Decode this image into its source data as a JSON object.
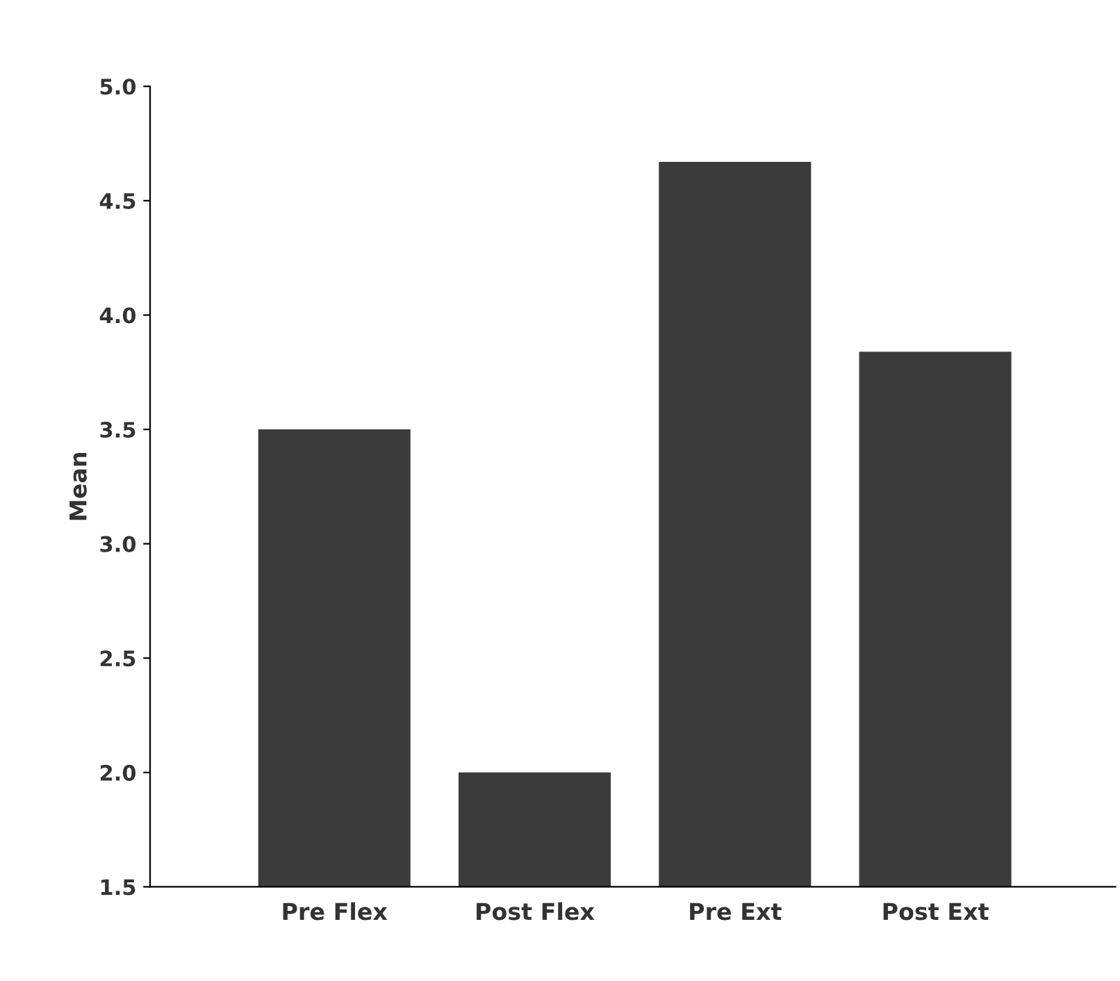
{
  "chart_data": {
    "type": "bar",
    "ylabel": "Mean",
    "categories": [
      "Pre Flex",
      "Post Flex",
      "Pre Ext",
      "Post Ext"
    ],
    "values": [
      3.5,
      2.0,
      4.67,
      3.84
    ],
    "color": "#3b3b3b",
    "ylim": [
      1.5,
      5.0
    ],
    "yticks": [
      {
        "value": 1.5,
        "label": "1.5"
      },
      {
        "value": 2.0,
        "label": "2.0"
      },
      {
        "value": 2.5,
        "label": "2.5"
      },
      {
        "value": 3.0,
        "label": "3.0"
      },
      {
        "value": 3.5,
        "label": "3.5"
      },
      {
        "value": 4.0,
        "label": "4.0"
      },
      {
        "value": 4.5,
        "label": "4.5"
      },
      {
        "value": 5.0,
        "label": "5.0"
      }
    ],
    "grid": false,
    "legend": false
  }
}
